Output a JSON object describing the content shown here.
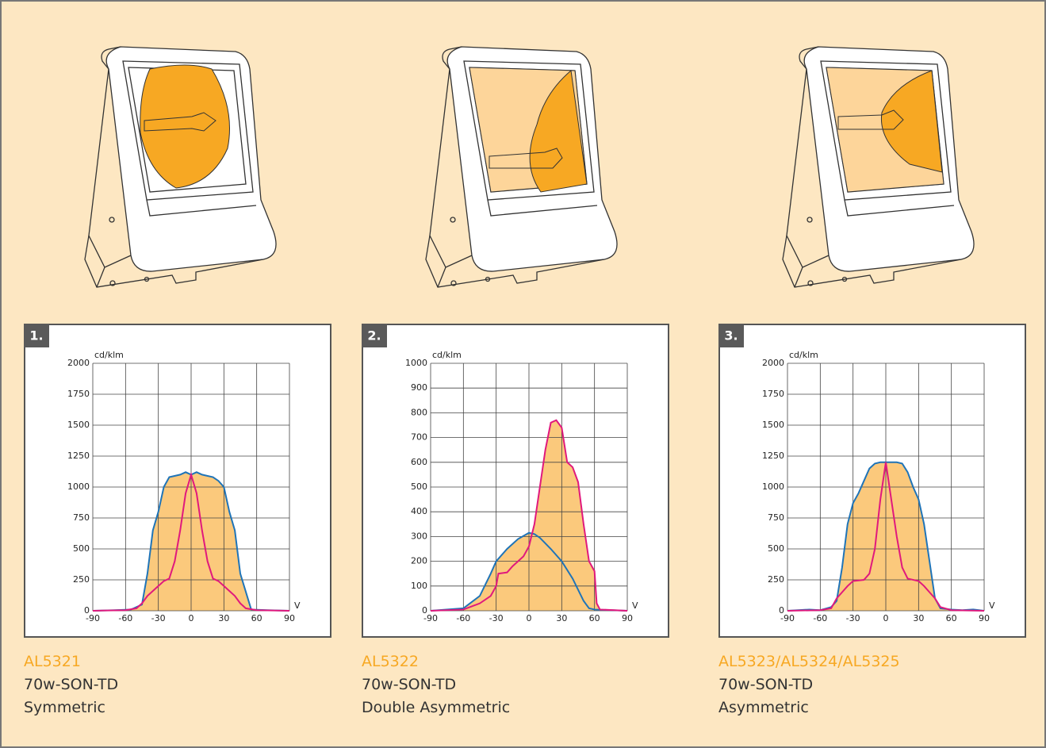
{
  "chart_data": [
    {
      "type": "line",
      "badge": "1.",
      "y_label": "cd/klm",
      "x_label": "V",
      "xlim": [
        -90,
        90
      ],
      "ylim": [
        0,
        2000
      ],
      "xticks": [
        -90,
        -60,
        -30,
        0,
        30,
        60,
        90
      ],
      "yticks": [
        0,
        250,
        500,
        750,
        1000,
        1250,
        1500,
        1750,
        2000
      ],
      "grid": true,
      "fill": "#fbc97c",
      "series": [
        {
          "color": "#1f74b8",
          "x": [
            -90,
            -70,
            -55,
            -45,
            -40,
            -35,
            -30,
            -25,
            -20,
            -10,
            -5,
            0,
            5,
            10,
            20,
            25,
            30,
            35,
            40,
            45,
            55,
            70,
            90
          ],
          "values": [
            0,
            5,
            10,
            50,
            300,
            650,
            800,
            1000,
            1080,
            1100,
            1120,
            1100,
            1120,
            1100,
            1080,
            1050,
            1000,
            800,
            650,
            300,
            10,
            5,
            0
          ]
        },
        {
          "color": "#e0197d",
          "x": [
            -90,
            -60,
            -50,
            -45,
            -40,
            -35,
            -30,
            -25,
            -20,
            -15,
            -10,
            -5,
            0,
            5,
            10,
            15,
            20,
            25,
            30,
            35,
            40,
            45,
            50,
            60,
            90
          ],
          "values": [
            0,
            5,
            20,
            60,
            120,
            160,
            200,
            240,
            260,
            400,
            650,
            950,
            1100,
            950,
            650,
            400,
            260,
            240,
            200,
            160,
            120,
            60,
            20,
            5,
            0
          ]
        }
      ]
    },
    {
      "type": "line",
      "badge": "2.",
      "y_label": "cd/klm",
      "x_label": "V",
      "xlim": [
        -90,
        90
      ],
      "ylim": [
        0,
        1000
      ],
      "xticks": [
        -90,
        -60,
        -30,
        0,
        30,
        60,
        90
      ],
      "yticks": [
        0,
        100,
        200,
        300,
        400,
        500,
        600,
        700,
        800,
        900,
        1000
      ],
      "grid": true,
      "fill": "#fbc97c",
      "series": [
        {
          "color": "#1f74b8",
          "x": [
            -90,
            -60,
            -45,
            -35,
            -30,
            -20,
            -10,
            0,
            5,
            10,
            20,
            30,
            40,
            50,
            55,
            60,
            90
          ],
          "values": [
            0,
            10,
            60,
            150,
            200,
            250,
            290,
            315,
            310,
            295,
            250,
            200,
            130,
            40,
            10,
            5,
            0
          ]
        },
        {
          "color": "#e0197d",
          "x": [
            -90,
            -60,
            -45,
            -35,
            -30,
            -28,
            -20,
            -15,
            -5,
            0,
            5,
            10,
            15,
            20,
            25,
            30,
            35,
            40,
            45,
            50,
            55,
            60,
            62,
            65,
            90
          ],
          "values": [
            0,
            5,
            30,
            60,
            100,
            150,
            155,
            180,
            220,
            260,
            350,
            500,
            650,
            760,
            770,
            740,
            600,
            580,
            520,
            350,
            200,
            160,
            30,
            5,
            0
          ]
        }
      ]
    },
    {
      "type": "line",
      "badge": "3.",
      "y_label": "cd/klm",
      "x_label": "V",
      "xlim": [
        -90,
        90
      ],
      "ylim": [
        0,
        2000
      ],
      "xticks": [
        -90,
        -60,
        -30,
        0,
        30,
        60,
        90
      ],
      "yticks": [
        0,
        250,
        500,
        750,
        1000,
        1250,
        1500,
        1750,
        2000
      ],
      "grid": true,
      "fill": "#fbc97c",
      "series": [
        {
          "color": "#1f74b8",
          "x": [
            -90,
            -70,
            -60,
            -50,
            -45,
            -40,
            -35,
            -30,
            -25,
            -20,
            -15,
            -10,
            -5,
            0,
            10,
            15,
            20,
            25,
            30,
            35,
            40,
            45,
            50,
            60,
            70,
            80,
            90
          ],
          "values": [
            0,
            10,
            5,
            30,
            80,
            350,
            700,
            870,
            950,
            1050,
            1150,
            1190,
            1200,
            1200,
            1200,
            1190,
            1120,
            1000,
            900,
            700,
            400,
            100,
            20,
            10,
            5,
            10,
            0
          ]
        },
        {
          "color": "#e0197d",
          "x": [
            -90,
            -60,
            -50,
            -45,
            -40,
            -35,
            -30,
            -20,
            -15,
            -10,
            -5,
            0,
            5,
            10,
            15,
            20,
            30,
            35,
            40,
            45,
            50,
            60,
            90
          ],
          "values": [
            0,
            5,
            20,
            100,
            150,
            200,
            240,
            250,
            300,
            500,
            900,
            1200,
            900,
            600,
            350,
            260,
            240,
            200,
            150,
            100,
            30,
            5,
            0
          ]
        }
      ]
    }
  ],
  "products": [
    {
      "code": "AL5321",
      "lamp": "70w-SON-TD",
      "distribution": "Symmetric"
    },
    {
      "code": "AL5322",
      "lamp": "70w-SON-TD",
      "distribution": "Double Asymmetric"
    },
    {
      "code": "AL5323/AL5324/AL5325",
      "lamp": "70w-SON-TD",
      "distribution": "Asymmetric"
    }
  ]
}
